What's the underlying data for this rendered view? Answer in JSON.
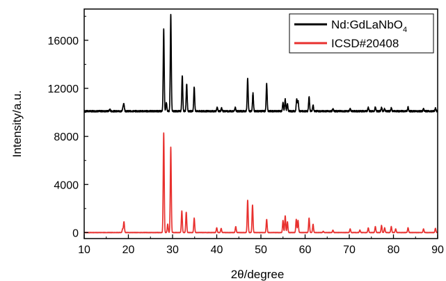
{
  "chart_data": {
    "type": "line",
    "xlabel": "2θ/degree",
    "ylabel": "Intensity/a.u.",
    "xlim": [
      10,
      90
    ],
    "ylim": [
      -500,
      18600
    ],
    "x_ticks": [
      "10",
      "20",
      "30",
      "40",
      "50",
      "60",
      "70",
      "80",
      "90"
    ],
    "y_ticks": [
      "0",
      "4000",
      "8000",
      "12000",
      "16000"
    ],
    "grid": false,
    "legend_position": "top-right",
    "series": [
      {
        "name_main": "Nd:GdLaNbO",
        "name_sub": "4",
        "color": "#000000",
        "baseline": 10100,
        "peaks": [
          [
            15.8,
            150
          ],
          [
            18.8,
            350
          ],
          [
            19.0,
            500
          ],
          [
            28.0,
            6800
          ],
          [
            28.6,
            700
          ],
          [
            29.6,
            8100
          ],
          [
            32.2,
            3000
          ],
          [
            33.2,
            2300
          ],
          [
            34.9,
            2000
          ],
          [
            40.1,
            300
          ],
          [
            41.1,
            250
          ],
          [
            44.2,
            300
          ],
          [
            47.0,
            2700
          ],
          [
            48.2,
            1500
          ],
          [
            51.3,
            2300
          ],
          [
            55.0,
            700
          ],
          [
            55.5,
            1000
          ],
          [
            56.0,
            600
          ],
          [
            58.1,
            1000
          ],
          [
            58.4,
            900
          ],
          [
            60.9,
            1200
          ],
          [
            61.8,
            500
          ],
          [
            66.3,
            200
          ],
          [
            70.2,
            200
          ],
          [
            74.3,
            300
          ],
          [
            75.9,
            350
          ],
          [
            77.3,
            300
          ],
          [
            78.0,
            200
          ],
          [
            79.5,
            250
          ],
          [
            83.3,
            350
          ],
          [
            86.8,
            200
          ],
          [
            89.5,
            250
          ]
        ]
      },
      {
        "name": "ICSD#20408",
        "color": "#e8302e",
        "baseline": 0,
        "peaks": [
          [
            18.7,
            300
          ],
          [
            19.0,
            900
          ],
          [
            28.0,
            8300
          ],
          [
            28.9,
            700
          ],
          [
            29.6,
            7100
          ],
          [
            32.1,
            1800
          ],
          [
            33.1,
            1700
          ],
          [
            34.9,
            1200
          ],
          [
            40.0,
            400
          ],
          [
            41.0,
            350
          ],
          [
            44.3,
            500
          ],
          [
            47.0,
            2700
          ],
          [
            48.1,
            2300
          ],
          [
            51.3,
            1100
          ],
          [
            55.0,
            1000
          ],
          [
            55.5,
            1400
          ],
          [
            56.0,
            900
          ],
          [
            58.0,
            1100
          ],
          [
            58.4,
            1000
          ],
          [
            60.9,
            1200
          ],
          [
            61.8,
            700
          ],
          [
            64.1,
            100
          ],
          [
            66.3,
            200
          ],
          [
            70.2,
            300
          ],
          [
            72.4,
            200
          ],
          [
            74.3,
            400
          ],
          [
            75.9,
            500
          ],
          [
            77.3,
            600
          ],
          [
            78.0,
            400
          ],
          [
            79.5,
            500
          ],
          [
            80.5,
            300
          ],
          [
            83.3,
            400
          ],
          [
            86.8,
            300
          ],
          [
            89.5,
            350
          ]
        ]
      }
    ]
  }
}
